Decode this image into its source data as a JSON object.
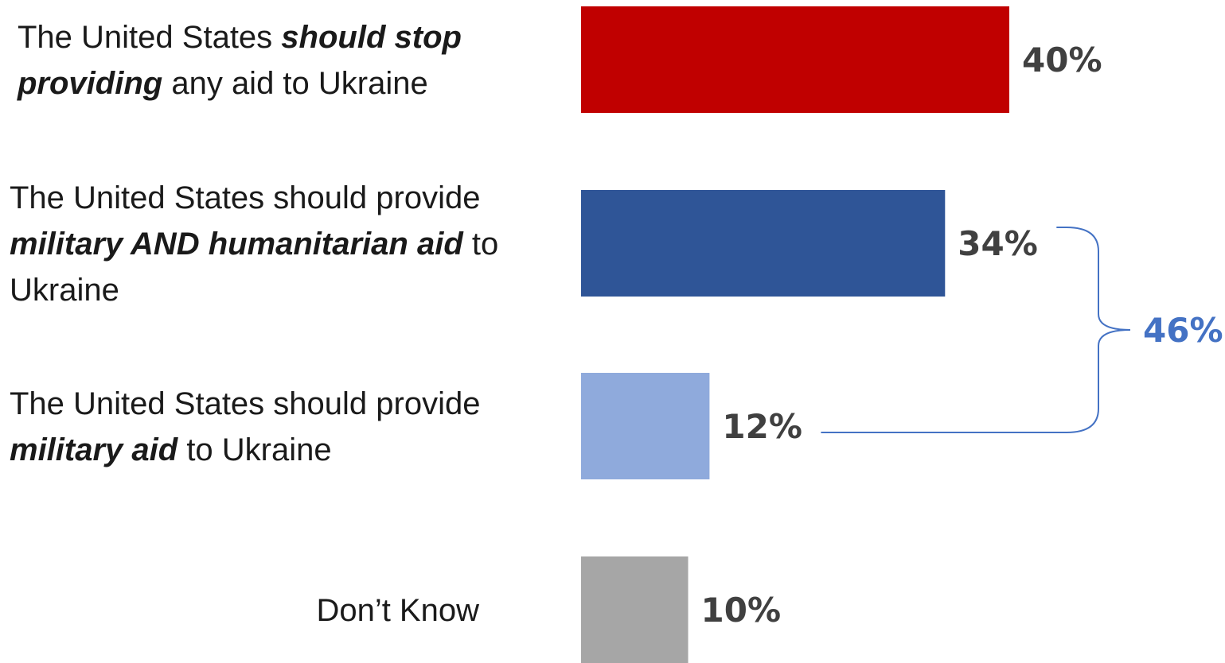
{
  "chart_data": {
    "type": "bar",
    "orientation": "horizontal",
    "categories": [
      [
        {
          "t": "The United States ",
          "em": false
        },
        {
          "t": "should stop",
          "em": true
        },
        {
          "br": true
        },
        {
          "t": "providing",
          "em": true
        },
        {
          "t": " any aid to Ukraine",
          "em": false
        }
      ],
      [
        {
          "t": "The United States should provide",
          "em": false
        },
        {
          "br": true
        },
        {
          "t": "military AND humanitarian aid",
          "em": true
        },
        {
          "t": " to",
          "em": false
        },
        {
          "br": true
        },
        {
          "t": "Ukraine",
          "em": false
        }
      ],
      [
        {
          "t": "The United States should provide",
          "em": false
        },
        {
          "br": true
        },
        {
          "t": "military aid",
          "em": true
        },
        {
          "t": " to Ukraine",
          "em": false
        }
      ],
      [
        {
          "t": "Don’t Know",
          "em": false
        }
      ]
    ],
    "values": [
      40,
      34,
      12,
      10
    ],
    "value_labels": [
      "40%",
      "34%",
      "12%",
      "10%"
    ],
    "colors": [
      "#c00000",
      "#2f5597",
      "#8faadc",
      "#a6a6a6"
    ],
    "bracket": {
      "groups": [
        1,
        2
      ],
      "value": 46,
      "label": "46%",
      "color": "#4472c4"
    }
  }
}
